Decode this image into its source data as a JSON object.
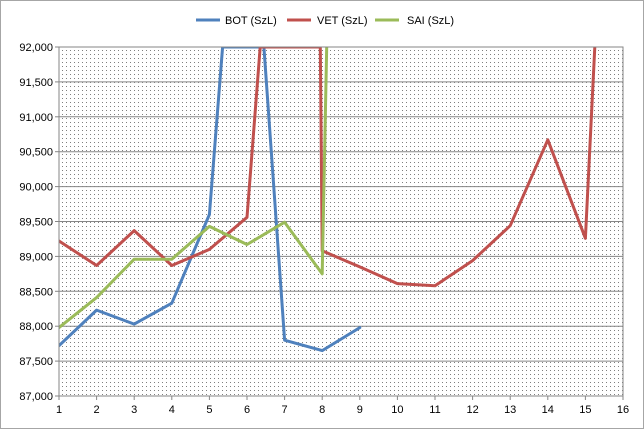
{
  "chart_data": {
    "type": "line",
    "title": "",
    "xlabel": "",
    "ylabel": "",
    "x_ticks": [
      "1",
      "2",
      "3",
      "4",
      "5",
      "6",
      "7",
      "8",
      "9",
      "10",
      "11",
      "12",
      "13",
      "14",
      "15",
      "16"
    ],
    "y_ticks": [
      "87,000",
      "87,500",
      "88,000",
      "88,500",
      "89,000",
      "89,500",
      "90,000",
      "90,500",
      "91,000",
      "91,500",
      "92,000"
    ],
    "xlim": [
      1,
      16
    ],
    "ylim": [
      87000,
      92000
    ],
    "grid": "horizontal",
    "plot_background": "dotted",
    "legend_position": "top",
    "series": [
      {
        "name": "BOT (SzL)",
        "color": "#4f81bd",
        "points": [
          [
            1,
            87720
          ],
          [
            2,
            88230
          ],
          [
            3,
            88030
          ],
          [
            4,
            88330
          ],
          [
            5,
            89600
          ],
          [
            5.35,
            92000
          ],
          [
            6.45,
            92000
          ],
          [
            7,
            87800
          ],
          [
            8,
            87650
          ],
          [
            9,
            87980
          ]
        ]
      },
      {
        "name": "VET (SzL)",
        "color": "#c0504d",
        "points": [
          [
            1,
            89220
          ],
          [
            2,
            88870
          ],
          [
            3,
            89370
          ],
          [
            4,
            88870
          ],
          [
            5,
            89100
          ],
          [
            6,
            89560
          ],
          [
            6.35,
            92000
          ],
          [
            6.65,
            92000
          ],
          [
            7.95,
            92000
          ],
          [
            8,
            89080
          ],
          [
            9,
            88850
          ],
          [
            10,
            88610
          ],
          [
            11,
            88580
          ],
          [
            12,
            88940
          ],
          [
            13,
            89440
          ],
          [
            14,
            90670
          ],
          [
            15,
            89260
          ],
          [
            15.25,
            92000
          ]
        ]
      },
      {
        "name": "SAI (SzL)",
        "color": "#9bbb59",
        "points": [
          [
            1,
            87980
          ],
          [
            2,
            88410
          ],
          [
            3,
            88960
          ],
          [
            4,
            88960
          ],
          [
            5,
            89430
          ],
          [
            6,
            89170
          ],
          [
            7,
            89490
          ],
          [
            8,
            88750
          ],
          [
            8.12,
            92000
          ]
        ]
      }
    ]
  }
}
